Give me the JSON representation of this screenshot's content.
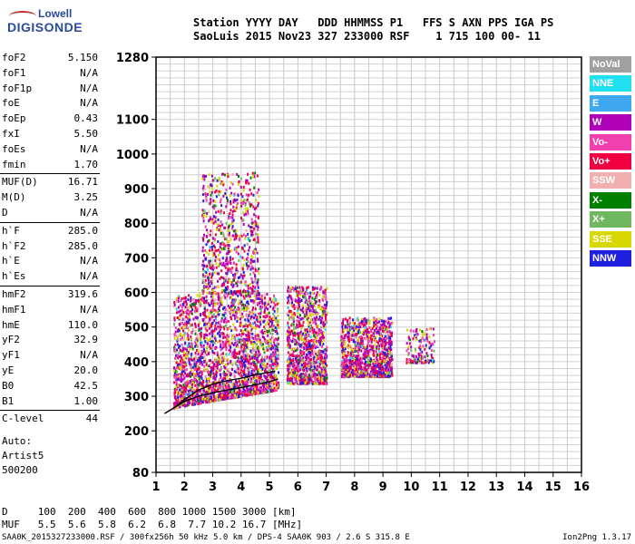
{
  "logo": {
    "line1": "Lowell",
    "line2": "DIGISONDE"
  },
  "header": {
    "line1": "Station YYYY DAY   DDD HHMMSS P1   FFS S AXN PPS IGA PS",
    "line2": "SaoLuis 2015 Nov23 327 233000 RSF    1 715 100 00- 11"
  },
  "params": [
    {
      "k": "foF2",
      "v": "5.150"
    },
    {
      "k": "foF1",
      "v": "N/A"
    },
    {
      "k": "foF1p",
      "v": "N/A"
    },
    {
      "k": "foE",
      "v": "N/A"
    },
    {
      "k": "foEp",
      "v": "0.43"
    },
    {
      "k": "fxI",
      "v": "5.50"
    },
    {
      "k": "foEs",
      "v": "N/A"
    },
    {
      "k": "fmin",
      "v": "1.70"
    },
    {
      "k": "MUF(D)",
      "v": "16.71"
    },
    {
      "k": "M(D)",
      "v": "3.25"
    },
    {
      "k": "D",
      "v": "N/A"
    },
    {
      "k": "h`F",
      "v": "285.0"
    },
    {
      "k": "h`F2",
      "v": "285.0"
    },
    {
      "k": "h`E",
      "v": "N/A"
    },
    {
      "k": "h`Es",
      "v": "N/A"
    },
    {
      "k": "hmF2",
      "v": "319.6"
    },
    {
      "k": "hmF1",
      "v": "N/A"
    },
    {
      "k": "hmE",
      "v": "110.0"
    },
    {
      "k": "yF2",
      "v": "32.9"
    },
    {
      "k": "yF1",
      "v": "N/A"
    },
    {
      "k": "yE",
      "v": "20.0"
    },
    {
      "k": "B0",
      "v": "42.5"
    },
    {
      "k": "B1",
      "v": "1.00"
    },
    {
      "k": "C-level",
      "v": "44"
    }
  ],
  "auto": {
    "l1": "Auto:",
    "l2": "Artist5",
    "l3": "500200"
  },
  "legend": [
    {
      "label": "NoVal",
      "color": "#a0a0a0"
    },
    {
      "label": "NNE",
      "color": "#20e0f0"
    },
    {
      "label": "E",
      "color": "#40a8f0"
    },
    {
      "label": "W",
      "color": "#b000b8"
    },
    {
      "label": "Vo-",
      "color": "#f040b0"
    },
    {
      "label": "Vo+",
      "color": "#f00040"
    },
    {
      "label": "SSW",
      "color": "#f0b0b0"
    },
    {
      "label": "X-",
      "color": "#008000"
    },
    {
      "label": "X+",
      "color": "#70b860"
    },
    {
      "label": "SSE",
      "color": "#d8d800"
    },
    {
      "label": "NNW",
      "color": "#2020e0"
    }
  ],
  "chart_data": {
    "type": "scatter",
    "xlim": [
      1,
      16
    ],
    "ylim": [
      80,
      1280
    ],
    "x_ticks": [
      "1",
      "2",
      "3",
      "4",
      "5",
      "6",
      "7",
      "8",
      "9",
      "10",
      "11",
      "12",
      "13",
      "14",
      "15",
      "16"
    ],
    "y_ticks": [
      "80",
      "200",
      "300",
      "400",
      "500",
      "600",
      "700",
      "800",
      "900",
      "1000",
      "1100",
      "1280"
    ],
    "grid": true,
    "trace_o": [
      [
        1.3,
        250
      ],
      [
        1.7,
        270
      ],
      [
        2.0,
        285
      ],
      [
        2.5,
        300
      ],
      [
        3.0,
        310
      ],
      [
        3.5,
        318
      ],
      [
        4.0,
        325
      ],
      [
        4.5,
        333
      ],
      [
        5.0,
        342
      ],
      [
        5.3,
        350
      ]
    ],
    "trace_x": [
      [
        1.7,
        270
      ],
      [
        2.0,
        290
      ],
      [
        2.5,
        318
      ],
      [
        3.0,
        335
      ],
      [
        3.5,
        345
      ],
      [
        4.0,
        352
      ],
      [
        4.5,
        362
      ],
      [
        5.2,
        372
      ]
    ],
    "clusters": [
      {
        "f": [
          1.6,
          5.3
        ],
        "h": [
          270,
          600
        ]
      },
      {
        "f": [
          2.6,
          4.6
        ],
        "h": [
          600,
          950
        ]
      },
      {
        "f": [
          5.6,
          7.0
        ],
        "h": [
          340,
          620
        ]
      },
      {
        "f": [
          7.5,
          9.3
        ],
        "h": [
          360,
          530
        ]
      },
      {
        "f": [
          9.8,
          10.8
        ],
        "h": [
          400,
          500
        ]
      }
    ]
  },
  "bottom": {
    "d_line": "D     100  200  400  600  800 1000 1500 3000 [km]",
    "muf_line": "MUF   5.5  5.6  5.8  6.2  6.8  7.7 10.2 16.7 [MHz]"
  },
  "footer": "SAA0K_2015327233000.RSF / 300fx256h 50 kHz 5.0 km / DPS-4 SAA0K 903 / 2.6 S 315.8 E",
  "version": "Ion2Png 1.3.17"
}
